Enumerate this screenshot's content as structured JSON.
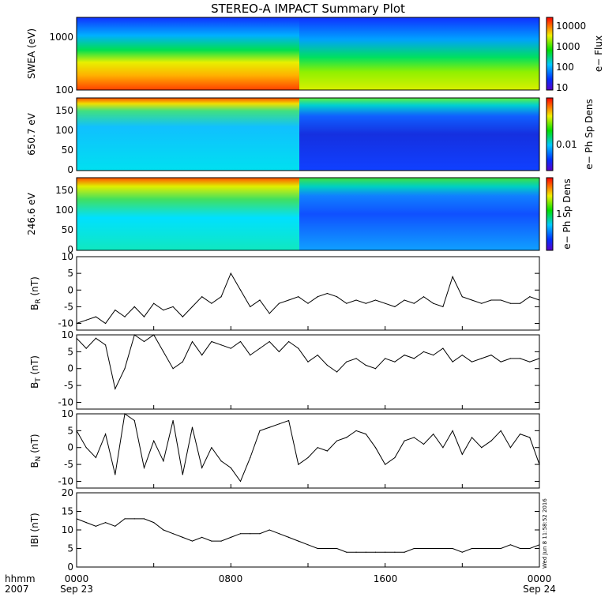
{
  "title": "STEREO-A IMPACT Summary Plot",
  "footer": {
    "hhmm_label": "hhmm",
    "year_label": "2007",
    "x_ticks": [
      "0000",
      "0800",
      "1600",
      "0000"
    ],
    "date_ticks": [
      "Sep 23",
      "",
      "",
      "Sep 24"
    ]
  },
  "timestamp": "Wed Jun  8 11:58:52 2016",
  "chart_data": [
    {
      "type": "heatmap",
      "panel": "swea",
      "ylabel": "SWEA (eV)",
      "yscale": "log",
      "ylim": [
        100,
        2000
      ],
      "yticks": [
        "1000",
        "100"
      ],
      "colorbar": {
        "label": "e− Flux",
        "scale": "log",
        "ticks": [
          "10000",
          "1000",
          "100",
          "10"
        ]
      },
      "x_range_hours": [
        0,
        24
      ]
    },
    {
      "type": "heatmap",
      "panel": "pad650",
      "ylabel": "650.7 eV",
      "ylim": [
        0,
        180
      ],
      "yticks": [
        "150",
        "100",
        "50",
        "0"
      ],
      "colorbar": {
        "label": "e− Ph Sp Dens",
        "scale": "log",
        "ticks": [
          "0.01"
        ]
      },
      "x_range_hours": [
        0,
        24
      ]
    },
    {
      "type": "heatmap",
      "panel": "pad246",
      "ylabel": "246.6 eV",
      "ylim": [
        0,
        180
      ],
      "yticks": [
        "150",
        "100",
        "50",
        "0"
      ],
      "colorbar": {
        "label": "e− Ph Sp Dens",
        "scale": "log",
        "ticks": [
          "1"
        ]
      },
      "x_range_hours": [
        0,
        24
      ]
    },
    {
      "type": "line",
      "panel": "br",
      "ylabel": "B",
      "ylabel_sub": "R",
      "ylabel_unit": "(nT)",
      "ylim": [
        -12,
        10
      ],
      "yticks": [
        "10",
        "5",
        "0",
        "-5",
        "-10"
      ],
      "x_hours": [
        0,
        0.5,
        1,
        1.5,
        2,
        2.5,
        3,
        3.5,
        4,
        4.5,
        5,
        5.5,
        6,
        6.5,
        7,
        7.5,
        8,
        8.5,
        9,
        9.5,
        10,
        10.5,
        11,
        11.5,
        12,
        12.5,
        13,
        13.5,
        14,
        14.5,
        15,
        15.5,
        16,
        16.5,
        17,
        17.5,
        18,
        18.5,
        19,
        19.5,
        20,
        20.5,
        21,
        21.5,
        22,
        22.5,
        23,
        23.5,
        24
      ],
      "y": [
        -10,
        -9,
        -8,
        -10,
        -6,
        -8,
        -5,
        -8,
        -4,
        -6,
        -5,
        -8,
        -5,
        -2,
        -4,
        -2,
        5,
        0,
        -5,
        -3,
        -7,
        -4,
        -3,
        -2,
        -4,
        -2,
        -1,
        -2,
        -4,
        -3,
        -4,
        -3,
        -4,
        -5,
        -3,
        -4,
        -2,
        -4,
        -5,
        4,
        -2,
        -3,
        -4,
        -3,
        -3,
        -4,
        -4,
        -2,
        -3
      ]
    },
    {
      "type": "line",
      "panel": "bt",
      "ylabel": "B",
      "ylabel_sub": "T",
      "ylabel_unit": "(nT)",
      "ylim": [
        -12,
        10
      ],
      "yticks": [
        "10",
        "5",
        "0",
        "-5",
        "-10"
      ],
      "x_hours": [
        0,
        0.5,
        1,
        1.5,
        2,
        2.5,
        3,
        3.5,
        4,
        4.5,
        5,
        5.5,
        6,
        6.5,
        7,
        7.5,
        8,
        8.5,
        9,
        9.5,
        10,
        10.5,
        11,
        11.5,
        12,
        12.5,
        13,
        13.5,
        14,
        14.5,
        15,
        15.5,
        16,
        16.5,
        17,
        17.5,
        18,
        18.5,
        19,
        19.5,
        20,
        20.5,
        21,
        21.5,
        22,
        22.5,
        23,
        23.5,
        24
      ],
      "y": [
        9,
        6,
        9,
        7,
        -6,
        0,
        10,
        8,
        10,
        5,
        0,
        2,
        8,
        4,
        8,
        7,
        6,
        8,
        4,
        6,
        8,
        5,
        8,
        6,
        2,
        4,
        1,
        -1,
        2,
        3,
        1,
        0,
        3,
        2,
        4,
        3,
        5,
        4,
        6,
        2,
        4,
        2,
        3,
        4,
        2,
        3,
        3,
        2,
        3
      ]
    },
    {
      "type": "line",
      "panel": "bn",
      "ylabel": "B",
      "ylabel_sub": "N",
      "ylabel_unit": "(nT)",
      "ylim": [
        -12,
        10
      ],
      "yticks": [
        "10",
        "5",
        "0",
        "-5",
        "-10"
      ],
      "x_hours": [
        0,
        0.5,
        1,
        1.5,
        2,
        2.5,
        3,
        3.5,
        4,
        4.5,
        5,
        5.5,
        6,
        6.5,
        7,
        7.5,
        8,
        8.5,
        9,
        9.5,
        10,
        10.5,
        11,
        11.5,
        12,
        12.5,
        13,
        13.5,
        14,
        14.5,
        15,
        15.5,
        16,
        16.5,
        17,
        17.5,
        18,
        18.5,
        19,
        19.5,
        20,
        20.5,
        21,
        21.5,
        22,
        22.5,
        23,
        23.5,
        24
      ],
      "y": [
        5,
        0,
        -3,
        4,
        -8,
        10,
        8,
        -6,
        2,
        -4,
        8,
        -8,
        6,
        -6,
        0,
        -4,
        -6,
        -10,
        -3,
        5,
        6,
        7,
        8,
        -5,
        -3,
        0,
        -1,
        2,
        3,
        5,
        4,
        0,
        -5,
        -3,
        2,
        3,
        1,
        4,
        0,
        5,
        -2,
        3,
        0,
        2,
        5,
        0,
        4,
        3,
        -5
      ]
    },
    {
      "type": "line",
      "panel": "bmag",
      "ylabel": "IBI (nT)",
      "ylim": [
        0,
        20
      ],
      "yticks": [
        "20",
        "15",
        "10",
        "5",
        "0"
      ],
      "x_hours": [
        0,
        0.5,
        1,
        1.5,
        2,
        2.5,
        3,
        3.5,
        4,
        4.5,
        5,
        5.5,
        6,
        6.5,
        7,
        7.5,
        8,
        8.5,
        9,
        9.5,
        10,
        10.5,
        11,
        11.5,
        12,
        12.5,
        13,
        13.5,
        14,
        14.5,
        15,
        15.5,
        16,
        16.5,
        17,
        17.5,
        18,
        18.5,
        19,
        19.5,
        20,
        20.5,
        21,
        21.5,
        22,
        22.5,
        23,
        23.5,
        24
      ],
      "y": [
        13,
        12,
        11,
        12,
        11,
        13,
        13,
        13,
        12,
        10,
        9,
        8,
        7,
        8,
        7,
        7,
        8,
        9,
        9,
        9,
        10,
        9,
        8,
        7,
        6,
        5,
        5,
        5,
        4,
        4,
        4,
        4,
        4,
        4,
        4,
        5,
        5,
        5,
        5,
        5,
        4,
        5,
        5,
        5,
        5,
        6,
        5,
        5,
        6
      ]
    }
  ]
}
